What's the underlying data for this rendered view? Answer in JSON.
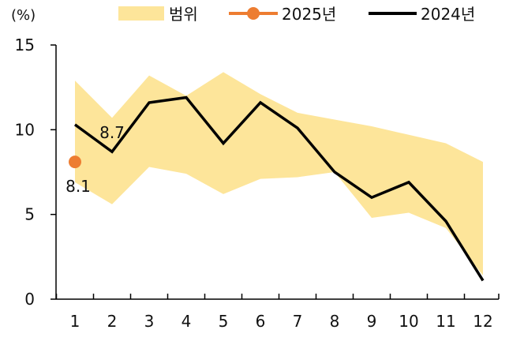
{
  "chart_data": {
    "type": "line",
    "title": "",
    "unit_label": "(%)",
    "xlabel": "",
    "ylabel": "",
    "categories": [
      "1",
      "2",
      "3",
      "4",
      "5",
      "6",
      "7",
      "8",
      "9",
      "10",
      "11",
      "12"
    ],
    "x_ticks": [
      "1",
      "2",
      "3",
      "4",
      "5",
      "6",
      "7",
      "8",
      "9",
      "10",
      "11",
      "12"
    ],
    "y_ticks": [
      "0",
      "5",
      "10",
      "15"
    ],
    "ylim": [
      0,
      15
    ],
    "grid": false,
    "legend_position": "top",
    "legend": [
      {
        "name": "범위",
        "type": "band",
        "color": "#FDE59A"
      },
      {
        "name": "2025년",
        "type": "line-marker",
        "color": "#ED7D31"
      },
      {
        "name": "2024년",
        "type": "line",
        "color": "#000000"
      }
    ],
    "series": [
      {
        "name": "범위",
        "type": "band",
        "color": "#FDE59A",
        "upper": [
          12.9,
          10.7,
          13.2,
          12.0,
          13.4,
          12.1,
          11.0,
          10.6,
          10.2,
          9.7,
          9.2,
          8.1
        ],
        "lower": [
          6.9,
          5.6,
          7.8,
          7.4,
          6.2,
          7.1,
          7.2,
          7.5,
          4.8,
          5.1,
          4.2,
          1.4
        ]
      },
      {
        "name": "2025년",
        "type": "point",
        "color": "#ED7D31",
        "values": [
          8.1,
          null,
          null,
          null,
          null,
          null,
          null,
          null,
          null,
          null,
          null,
          null
        ]
      },
      {
        "name": "2024년",
        "type": "line",
        "color": "#000000",
        "values": [
          10.3,
          8.7,
          11.6,
          11.9,
          9.2,
          11.6,
          10.1,
          7.5,
          6.0,
          6.9,
          4.6,
          1.1
        ]
      }
    ],
    "annotations": [
      {
        "text": "8.7",
        "series": "2024년",
        "category": "2",
        "value": 8.7
      },
      {
        "text": "8.1",
        "series": "2025년",
        "category": "1",
        "value": 8.1
      }
    ]
  }
}
